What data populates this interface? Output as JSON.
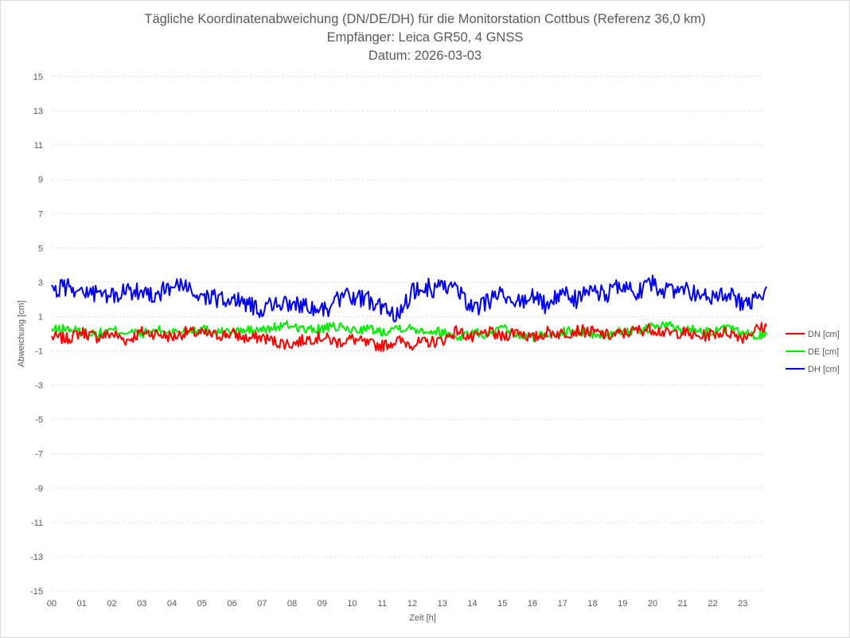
{
  "colors": {
    "dn": "#ff0000",
    "de": "#00ee00",
    "dh": "#0000ee",
    "grid": "#d9d9d9",
    "text": "#595959"
  },
  "chart_data": {
    "type": "line",
    "title": "Tägliche Koordinatenabweichung (DN/DE/DH) für die Monitorstation Cottbus (Referenz 36,0 km)",
    "subtitle": "Empfänger: Leica GR50, 4 GNSS",
    "date_line": "Datum: 2026-03-03",
    "xlabel": "Zeit [h]",
    "ylabel": "Abweichung [cm]",
    "xlim": [
      0,
      24
    ],
    "ylim": [
      -15,
      15
    ],
    "x_ticks": [
      "00",
      "01",
      "02",
      "03",
      "04",
      "05",
      "06",
      "07",
      "08",
      "09",
      "10",
      "11",
      "12",
      "13",
      "14",
      "15",
      "16",
      "17",
      "18",
      "19",
      "20",
      "21",
      "22",
      "23"
    ],
    "y_ticks": [
      "15",
      "13",
      "11",
      "9",
      "7",
      "5",
      "3",
      "1",
      "-1",
      "-3",
      "-5",
      "-7",
      "-9",
      "-11",
      "-13",
      "-15"
    ],
    "grid": true,
    "legend_position": "right",
    "series": [
      {
        "name": "DN [cm]",
        "key": "dn",
        "x": [
          0,
          0.5,
          1,
          1.5,
          2,
          2.5,
          3,
          3.5,
          4,
          4.5,
          5,
          5.5,
          6,
          6.5,
          7,
          7.5,
          8,
          8.5,
          9,
          9.5,
          10,
          10.5,
          11,
          11.5,
          12,
          12.5,
          13,
          13.5,
          14,
          14.5,
          15,
          15.5,
          16,
          16.5,
          17,
          17.5,
          18,
          18.5,
          19,
          19.5,
          20,
          20.5,
          21,
          21.5,
          22,
          22.5,
          23,
          23.5,
          23.8
        ],
        "values": [
          -0.2,
          -0.3,
          0.1,
          -0.2,
          0.0,
          -0.4,
          0.1,
          0.0,
          -0.2,
          0.1,
          0.0,
          -0.1,
          0.0,
          -0.3,
          -0.2,
          -0.5,
          -0.6,
          -0.3,
          -0.2,
          -0.5,
          -0.3,
          -0.6,
          -0.7,
          -0.4,
          -0.6,
          -0.5,
          -0.4,
          0.2,
          -0.3,
          0.1,
          -0.2,
          0.2,
          -0.3,
          0.1,
          0.0,
          0.2,
          0.1,
          -0.1,
          0.0,
          0.2,
          0.3,
          0.0,
          0.1,
          -0.2,
          0.0,
          0.1,
          -0.2,
          0.3,
          0.4
        ]
      },
      {
        "name": "DE [cm]",
        "key": "de",
        "x": [
          0,
          0.5,
          1,
          1.5,
          2,
          2.5,
          3,
          3.5,
          4,
          4.5,
          5,
          5.5,
          6,
          6.5,
          7,
          7.5,
          8,
          8.5,
          9,
          9.5,
          10,
          10.5,
          11,
          11.5,
          12,
          12.5,
          13,
          13.5,
          14,
          14.5,
          15,
          15.5,
          16,
          16.5,
          17,
          17.5,
          18,
          18.5,
          19,
          19.5,
          20,
          20.5,
          21,
          21.5,
          22,
          22.5,
          23,
          23.5,
          23.8
        ],
        "values": [
          0.2,
          0.3,
          0.1,
          0.0,
          0.2,
          0.1,
          0.0,
          0.2,
          0.1,
          0.2,
          0.3,
          0.1,
          0.1,
          0.2,
          0.2,
          0.4,
          0.5,
          0.2,
          0.3,
          0.4,
          0.2,
          0.3,
          0.1,
          0.4,
          0.3,
          0.2,
          0.1,
          -0.2,
          0.1,
          -0.1,
          0.3,
          -0.1,
          -0.2,
          0.0,
          0.1,
          0.2,
          0.0,
          -0.1,
          0.2,
          0.1,
          0.4,
          0.5,
          0.2,
          0.3,
          0.1,
          0.3,
          0.0,
          -0.1,
          0.0
        ]
      },
      {
        "name": "DH [cm]",
        "key": "dh",
        "x": [
          0,
          0.5,
          1,
          1.5,
          2,
          2.5,
          3,
          3.5,
          4,
          4.5,
          5,
          5.5,
          6,
          6.5,
          7,
          7.5,
          8,
          8.5,
          9,
          9.5,
          10,
          10.5,
          11,
          11.5,
          12,
          12.5,
          13,
          13.5,
          14,
          14.5,
          15,
          15.5,
          16,
          16.5,
          17,
          17.5,
          18,
          18.5,
          19,
          19.5,
          20,
          20.5,
          21,
          21.5,
          22,
          22.5,
          23,
          23.5,
          23.8
        ],
        "values": [
          2.4,
          2.8,
          2.5,
          2.3,
          2.2,
          2.4,
          2.5,
          2.3,
          2.8,
          2.6,
          2.2,
          2.0,
          2.0,
          1.8,
          1.4,
          1.9,
          1.5,
          1.8,
          1.3,
          1.9,
          2.2,
          2.0,
          1.4,
          1.2,
          2.4,
          2.7,
          2.6,
          2.6,
          1.4,
          1.8,
          2.3,
          1.8,
          2.1,
          1.6,
          2.4,
          2.0,
          2.5,
          2.3,
          2.8,
          2.4,
          2.9,
          2.4,
          2.6,
          2.3,
          2.0,
          2.3,
          1.8,
          2.0,
          2.2
        ]
      }
    ]
  }
}
